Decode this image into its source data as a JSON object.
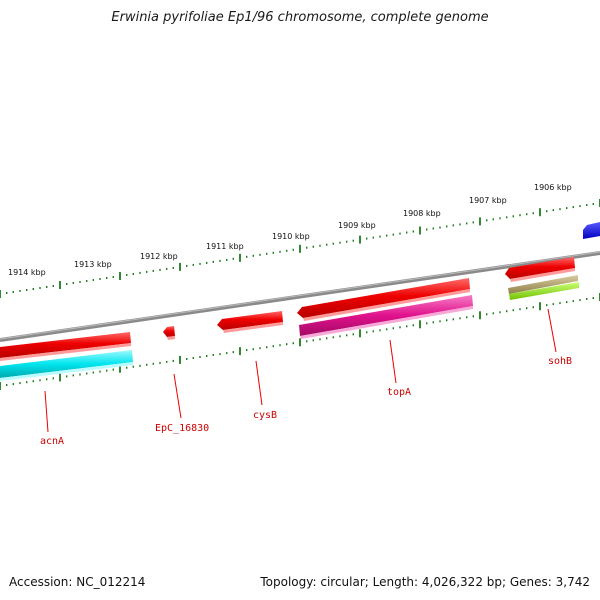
{
  "title": "Erwinia pyrifoliae Ep1/96 chromosome, complete genome",
  "footer": {
    "accession": "Accession: NC_012214",
    "topology": "Topology: circular; Length: 4,026,322 bp; Genes: 3,742"
  },
  "kbp_labels": [
    "1906 kbp",
    "1907 kbp",
    "1908 kbp",
    "1909 kbp",
    "1910 kbp",
    "1911 kbp",
    "1912 kbp",
    "1913 kbp",
    "1914 kbp"
  ],
  "genes": [
    "sohB",
    "topA",
    "cysB",
    "EpC_16830",
    "acnA"
  ],
  "colors": {
    "gene_forward": "#ee0000",
    "cds_cyan": "#00e5ee",
    "cds_magenta": "#e0118c",
    "rna_tan": "#b5a36a",
    "rna_lime": "#99ee22",
    "blue_feature": "#0000ee",
    "tick": "#1d7a1d",
    "backbone": "#808080"
  }
}
